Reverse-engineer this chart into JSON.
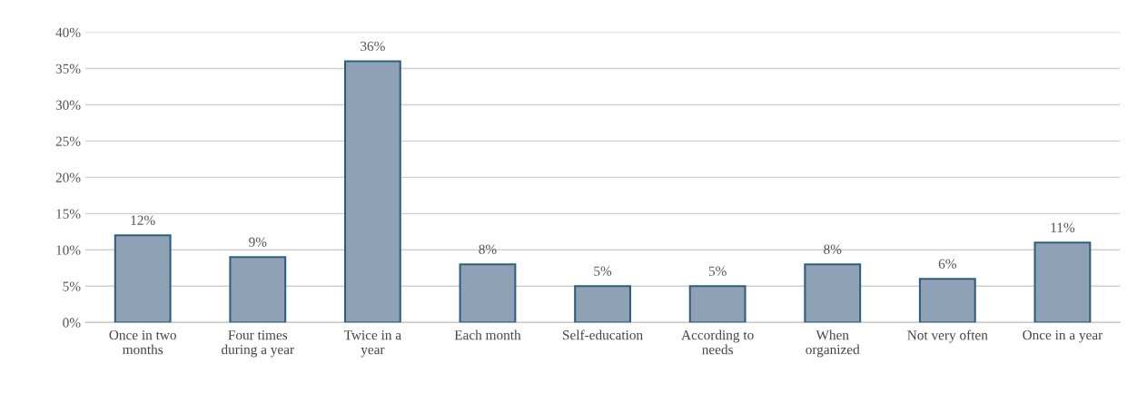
{
  "chart_data": {
    "type": "bar",
    "categories": [
      "Once in two\nmonths",
      "Four times\nduring a year",
      "Twice in a\nyear",
      "Each month",
      "Self-education",
      "According to\nneeds",
      "When\norganized",
      "Not very often",
      "Once in a year"
    ],
    "values": [
      12,
      9,
      36,
      8,
      5,
      5,
      8,
      6,
      11
    ],
    "value_labels": [
      "12%",
      "9%",
      "36%",
      "8%",
      "5%",
      "5%",
      "8%",
      "6%",
      "11%"
    ],
    "color": "#8fa2b5",
    "ylim": [
      0,
      40
    ],
    "yticks": [
      {
        "value": 0,
        "label": "0%"
      },
      {
        "value": 5,
        "label": "5%"
      },
      {
        "value": 10,
        "label": "10%"
      },
      {
        "value": 15,
        "label": "15%"
      },
      {
        "value": 20,
        "label": "20%"
      },
      {
        "value": 25,
        "label": "25%"
      },
      {
        "value": 30,
        "label": "30%"
      },
      {
        "value": 35,
        "label": "35%"
      },
      {
        "value": 40,
        "label": "40%"
      }
    ],
    "grid": "y"
  }
}
